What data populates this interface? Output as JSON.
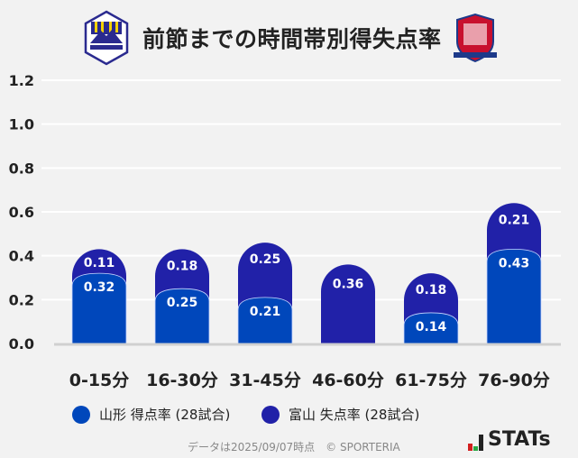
{
  "header": {
    "title": "前節までの時間帯別得失点率",
    "home_logo": "Montedio YAMAGATA",
    "away_logo": "Kataller Toyama"
  },
  "chart_data": {
    "type": "bar",
    "stacked": true,
    "categories": [
      "0-15分",
      "16-30分",
      "31-45分",
      "46-60分",
      "61-75分",
      "76-90分"
    ],
    "series": [
      {
        "name": "山形 得点率 (28試合)",
        "color": "#0047bb",
        "values": [
          0.32,
          0.25,
          0.21,
          0,
          0.14,
          0.43
        ],
        "labels": [
          "0.32",
          "0.25",
          "0.21",
          "",
          "0.14",
          "0.43"
        ]
      },
      {
        "name": "富山 失点率 (28試合)",
        "color": "#2121a8",
        "values": [
          0.11,
          0.18,
          0.25,
          0.36,
          0.18,
          0.21
        ],
        "labels": [
          "0.11",
          "0.18",
          "0.25",
          "0.36",
          "0.18",
          "0.21"
        ]
      }
    ],
    "yticks": [
      "0.0",
      "0.2",
      "0.4",
      "0.6",
      "0.8",
      "1.0",
      "1.2"
    ],
    "ylim": [
      0,
      1.2
    ],
    "grid": true,
    "legend": "bottom"
  },
  "footer": {
    "note": "データは2025/09/07時点　© SPORTERIA",
    "brand": "STATs"
  }
}
